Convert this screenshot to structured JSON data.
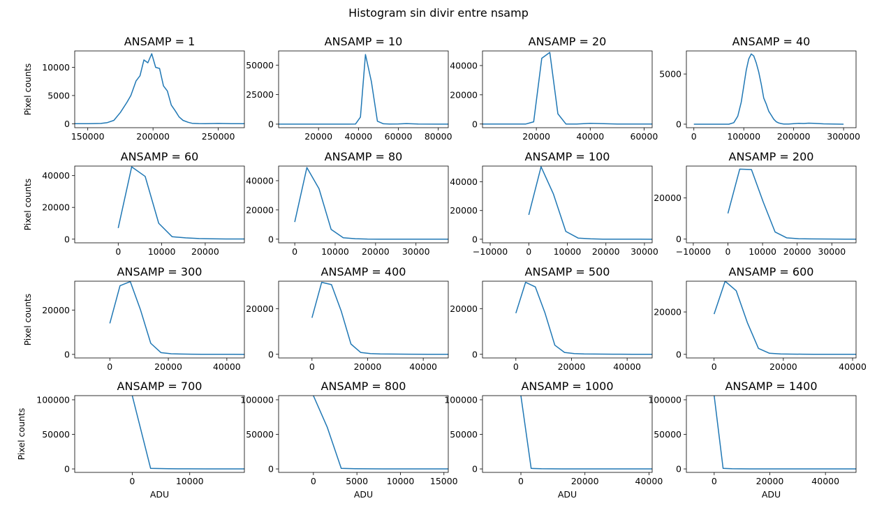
{
  "figure": {
    "suptitle": "Histogram sin divir entre nsamp"
  },
  "colors": {
    "line": "#1f77b4",
    "axes": "#000000"
  },
  "chart_data": [
    {
      "type": "line",
      "title": "ANSAMP = 1",
      "ylabel": "Pixel counts",
      "xlabel": "",
      "xlim": [
        140000,
        270000
      ],
      "ylim": [
        -700,
        12900
      ],
      "xticks": [
        150000,
        200000,
        250000
      ],
      "xtick_labels": [
        "150000",
        "200000",
        "250000"
      ],
      "yticks": [
        0,
        5000,
        10000
      ],
      "ytick_labels": [
        "0",
        "5000",
        "10000"
      ],
      "series": [
        {
          "x": [
            140000,
            150000,
            160000,
            165000,
            170000,
            175000,
            180000,
            183000,
            187000,
            190000,
            193000,
            196000,
            199000,
            202000,
            205000,
            208000,
            211000,
            214000,
            217000,
            220000,
            223000,
            227000,
            230000,
            235000,
            240000,
            250000,
            260000,
            270000
          ],
          "y": [
            0,
            0,
            50,
            200,
            600,
            2000,
            3800,
            5000,
            7600,
            8500,
            11300,
            10800,
            12400,
            10000,
            9800,
            6700,
            5800,
            3300,
            2300,
            1200,
            600,
            250,
            80,
            30,
            20,
            50,
            20,
            0
          ]
        }
      ]
    },
    {
      "type": "line",
      "title": "ANSAMP = 10",
      "ylabel": "",
      "xlabel": "",
      "xlim": [
        0,
        85000
      ],
      "ylim": [
        -3000,
        62000
      ],
      "xticks": [
        20000,
        40000,
        60000,
        80000
      ],
      "xtick_labels": [
        "20000",
        "40000",
        "60000",
        "80000"
      ],
      "yticks": [
        0,
        25000,
        50000
      ],
      "ytick_labels": [
        "0",
        "25000",
        "50000"
      ],
      "series": [
        {
          "x": [
            0,
            35000,
            38500,
            41000,
            43500,
            46500,
            49500,
            52500,
            55500,
            60000,
            64000,
            70000,
            80000,
            85000
          ],
          "y": [
            0,
            0,
            100,
            6000,
            59000,
            36000,
            2500,
            300,
            100,
            200,
            500,
            100,
            0,
            0
          ]
        }
      ]
    },
    {
      "type": "line",
      "title": "ANSAMP = 20",
      "ylabel": "",
      "xlabel": "",
      "xlim": [
        0,
        63000
      ],
      "ylim": [
        -2500,
        50000
      ],
      "xticks": [
        20000,
        40000,
        60000
      ],
      "xtick_labels": [
        "20000",
        "40000",
        "60000"
      ],
      "yticks": [
        0,
        20000,
        40000
      ],
      "ytick_labels": [
        "0",
        "20000",
        "40000"
      ],
      "series": [
        {
          "x": [
            0,
            16000,
            19000,
            22000,
            25000,
            28000,
            31000,
            35000,
            40000,
            45000,
            50000,
            63000
          ],
          "y": [
            0,
            0,
            1500,
            45000,
            49000,
            7000,
            0,
            0,
            500,
            200,
            0,
            0
          ]
        }
      ]
    },
    {
      "type": "line",
      "title": "ANSAMP = 40",
      "ylabel": "",
      "xlabel": "",
      "xlim": [
        -15000,
        325000
      ],
      "ylim": [
        -350,
        7300
      ],
      "xticks": [
        0,
        100000,
        200000,
        300000
      ],
      "xtick_labels": [
        "0",
        "100000",
        "200000",
        "300000"
      ],
      "yticks": [
        0,
        5000
      ],
      "ytick_labels": [
        "0",
        "5000"
      ],
      "series": [
        {
          "x": [
            0,
            70000,
            80000,
            88000,
            95000,
            100000,
            105000,
            110000,
            115000,
            120000,
            125000,
            130000,
            135000,
            140000,
            145000,
            150000,
            155000,
            160000,
            165000,
            170000,
            175000,
            180000,
            190000,
            200000,
            210000,
            220000,
            230000,
            240000,
            260000,
            280000,
            300000
          ],
          "y": [
            0,
            0,
            150,
            800,
            2200,
            3800,
            5400,
            6500,
            7000,
            6800,
            6100,
            5200,
            4000,
            2600,
            2000,
            1300,
            900,
            500,
            250,
            120,
            60,
            20,
            20,
            50,
            80,
            70,
            100,
            80,
            30,
            10,
            0
          ]
        }
      ]
    },
    {
      "type": "line",
      "title": "ANSAMP = 60",
      "ylabel": "Pixel counts",
      "xlabel": "",
      "xlim": [
        -10000,
        29000
      ],
      "ylim": [
        -2300,
        46000
      ],
      "xticks": [
        0,
        10000,
        20000
      ],
      "xtick_labels": [
        "0",
        "10000",
        "20000"
      ],
      "yticks": [
        0,
        20000,
        40000
      ],
      "ytick_labels": [
        "0",
        "20000",
        "40000"
      ],
      "series": [
        {
          "x": [
            0,
            3100,
            6200,
            9300,
            12400,
            15500,
            18600,
            21700,
            24800,
            29000
          ],
          "y": [
            7000,
            45500,
            39500,
            10000,
            1500,
            800,
            400,
            200,
            100,
            100
          ]
        }
      ]
    },
    {
      "type": "line",
      "title": "ANSAMP = 80",
      "ylabel": "",
      "xlabel": "",
      "xlim": [
        -4000,
        38000
      ],
      "ylim": [
        -2500,
        50000
      ],
      "xticks": [
        0,
        10000,
        20000,
        30000
      ],
      "xtick_labels": [
        "0",
        "10000",
        "20000",
        "30000"
      ],
      "yticks": [
        0,
        20000,
        40000
      ],
      "ytick_labels": [
        "0",
        "20000",
        "40000"
      ],
      "series": [
        {
          "x": [
            0,
            3000,
            6000,
            9000,
            12000,
            15000,
            18000,
            21000,
            24000,
            27000,
            30000,
            33000,
            38000
          ],
          "y": [
            11700,
            49000,
            34500,
            6700,
            1000,
            300,
            100,
            50,
            30,
            20,
            10,
            5,
            0
          ]
        }
      ]
    },
    {
      "type": "line",
      "title": "ANSAMP = 100",
      "ylabel": "",
      "xlabel": "",
      "xlim": [
        -12000,
        32000
      ],
      "ylim": [
        -2500,
        51000
      ],
      "xticks": [
        -10000,
        0,
        10000,
        20000,
        30000
      ],
      "xtick_labels": [
        "−10000",
        "0",
        "10000",
        "20000",
        "30000"
      ],
      "yticks": [
        0,
        20000,
        40000
      ],
      "ytick_labels": [
        "0",
        "20000",
        "40000"
      ],
      "series": [
        {
          "x": [
            0,
            3200,
            6400,
            9600,
            12800,
            16000,
            19200,
            22400,
            25600,
            28800,
            32000
          ],
          "y": [
            17000,
            50500,
            31500,
            5500,
            800,
            300,
            100,
            50,
            20,
            10,
            0
          ]
        }
      ]
    },
    {
      "type": "line",
      "title": "ANSAMP = 200",
      "ylabel": "",
      "xlabel": "",
      "xlim": [
        -12000,
        37000
      ],
      "ylim": [
        -1800,
        35500
      ],
      "xticks": [
        -10000,
        0,
        10000,
        20000,
        30000
      ],
      "xtick_labels": [
        "−10000",
        "0",
        "10000",
        "20000",
        "30000"
      ],
      "yticks": [
        0,
        20000
      ],
      "ytick_labels": [
        "0",
        "20000"
      ],
      "series": [
        {
          "x": [
            0,
            3400,
            6800,
            10200,
            13600,
            17000,
            20400,
            23800,
            27200,
            30600,
            34000,
            37000
          ],
          "y": [
            12500,
            34000,
            33800,
            18000,
            3500,
            600,
            200,
            100,
            50,
            20,
            10,
            0
          ]
        }
      ]
    },
    {
      "type": "line",
      "title": "ANSAMP = 300",
      "ylabel": "Pixel counts",
      "xlabel": "",
      "xlim": [
        -12000,
        46000
      ],
      "ylim": [
        -1600,
        33000
      ],
      "xticks": [
        0,
        20000,
        40000
      ],
      "xtick_labels": [
        "0",
        "20000",
        "40000"
      ],
      "yticks": [
        0,
        20000
      ],
      "ytick_labels": [
        "0",
        "20000"
      ],
      "series": [
        {
          "x": [
            0,
            3500,
            7000,
            10500,
            14000,
            17500,
            21000,
            24500,
            28000,
            31500,
            35000,
            38500,
            42000,
            46000
          ],
          "y": [
            14000,
            31000,
            32800,
            20000,
            5000,
            800,
            300,
            150,
            100,
            80,
            60,
            40,
            20,
            0
          ]
        }
      ]
    },
    {
      "type": "line",
      "title": "ANSAMP = 400",
      "ylabel": "",
      "xlabel": "",
      "xlim": [
        -12000,
        49000
      ],
      "ylim": [
        -1600,
        32000
      ],
      "xticks": [
        0,
        20000,
        40000
      ],
      "xtick_labels": [
        "0",
        "20000",
        "40000"
      ],
      "yticks": [
        0,
        20000
      ],
      "ytick_labels": [
        "0",
        "20000"
      ],
      "series": [
        {
          "x": [
            0,
            3500,
            7000,
            10500,
            14000,
            17500,
            21000,
            24500,
            28000,
            35000,
            42000,
            49000
          ],
          "y": [
            16000,
            31500,
            30500,
            19000,
            4500,
            800,
            300,
            150,
            100,
            50,
            20,
            0
          ]
        }
      ]
    },
    {
      "type": "line",
      "title": "ANSAMP = 500",
      "ylabel": "",
      "xlabel": "",
      "xlim": [
        -12000,
        49000
      ],
      "ylim": [
        -1600,
        32000
      ],
      "xticks": [
        0,
        20000,
        40000
      ],
      "xtick_labels": [
        "0",
        "20000",
        "40000"
      ],
      "yticks": [
        0,
        20000
      ],
      "ytick_labels": [
        "0",
        "20000"
      ],
      "series": [
        {
          "x": [
            0,
            3500,
            7000,
            10500,
            14000,
            17500,
            21000,
            24500,
            28000,
            35000,
            42000,
            49000
          ],
          "y": [
            18000,
            31500,
            29500,
            18000,
            4000,
            800,
            300,
            150,
            100,
            50,
            20,
            0
          ]
        }
      ]
    },
    {
      "type": "line",
      "title": "ANSAMP = 600",
      "ylabel": "",
      "xlabel": "",
      "xlim": [
        -8000,
        41000
      ],
      "ylim": [
        -1700,
        34500
      ],
      "xticks": [
        0,
        20000,
        40000
      ],
      "xtick_labels": [
        "0",
        "20000",
        "40000"
      ],
      "yticks": [
        0,
        20000
      ],
      "ytick_labels": [
        "0",
        "20000"
      ],
      "series": [
        {
          "x": [
            0,
            3200,
            6400,
            9600,
            12800,
            16000,
            19200,
            22400,
            25600,
            28800,
            32000,
            35200,
            41000
          ],
          "y": [
            19000,
            34500,
            30000,
            15000,
            2800,
            500,
            200,
            100,
            80,
            60,
            40,
            20,
            0
          ]
        }
      ]
    },
    {
      "type": "line",
      "title": "ANSAMP = 700",
      "ylabel": "Pixel counts",
      "xlabel": "ADU",
      "xlim": [
        -10000,
        19500
      ],
      "ylim": [
        -5000,
        106000
      ],
      "xticks": [
        0,
        10000
      ],
      "xtick_labels": [
        "0",
        "10000"
      ],
      "yticks": [
        0,
        50000,
        100000
      ],
      "ytick_labels": [
        "0",
        "50000",
        "100000"
      ],
      "series": [
        {
          "x": [
            0,
            3200,
            6400,
            9600,
            12800,
            16000,
            19500
          ],
          "y": [
            106000,
            800,
            200,
            100,
            50,
            20,
            0
          ]
        }
      ]
    },
    {
      "type": "line",
      "title": "ANSAMP = 800",
      "ylabel": "",
      "xlabel": "ADU",
      "xlim": [
        -4000,
        15500
      ],
      "ylim": [
        -5000,
        106000
      ],
      "xticks": [
        0,
        5000,
        10000,
        15000
      ],
      "xtick_labels": [
        "0",
        "5000",
        "10000",
        "15000"
      ],
      "yticks": [
        0,
        50000,
        100000
      ],
      "ytick_labels": [
        "0",
        "50000",
        "100000"
      ],
      "series": [
        {
          "x": [
            0,
            1600,
            3200,
            4800,
            6400,
            8000,
            9600,
            11200,
            12800,
            15500
          ],
          "y": [
            106000,
            60000,
            800,
            200,
            100,
            50,
            30,
            20,
            10,
            0
          ]
        }
      ]
    },
    {
      "type": "line",
      "title": "ANSAMP = 1000",
      "ylabel": "",
      "xlabel": "ADU",
      "xlim": [
        -12000,
        41000
      ],
      "ylim": [
        -5000,
        106000
      ],
      "xticks": [
        0,
        20000,
        40000
      ],
      "xtick_labels": [
        "0",
        "20000",
        "40000"
      ],
      "yticks": [
        0,
        50000,
        100000
      ],
      "ytick_labels": [
        "0",
        "50000",
        "100000"
      ],
      "series": [
        {
          "x": [
            0,
            3200,
            6400,
            9600,
            12800,
            16000,
            20000,
            25000,
            30000,
            35000,
            41000
          ],
          "y": [
            106000,
            800,
            200,
            100,
            50,
            30,
            20,
            10,
            10,
            5,
            0
          ]
        }
      ]
    },
    {
      "type": "line",
      "title": "ANSAMP = 1400",
      "ylabel": "",
      "xlabel": "ADU",
      "xlim": [
        -10000,
        51000
      ],
      "ylim": [
        -5000,
        106000
      ],
      "xticks": [
        0,
        20000,
        40000
      ],
      "xtick_labels": [
        "0",
        "20000",
        "40000"
      ],
      "yticks": [
        0,
        50000,
        100000
      ],
      "ytick_labels": [
        "0",
        "50000",
        "100000"
      ],
      "series": [
        {
          "x": [
            0,
            3200,
            6400,
            9600,
            12800,
            16000,
            20000,
            25000,
            30000,
            35000,
            40000,
            45000,
            51000
          ],
          "y": [
            106000,
            800,
            200,
            100,
            50,
            30,
            20,
            10,
            10,
            5,
            5,
            0,
            0
          ]
        }
      ]
    }
  ]
}
